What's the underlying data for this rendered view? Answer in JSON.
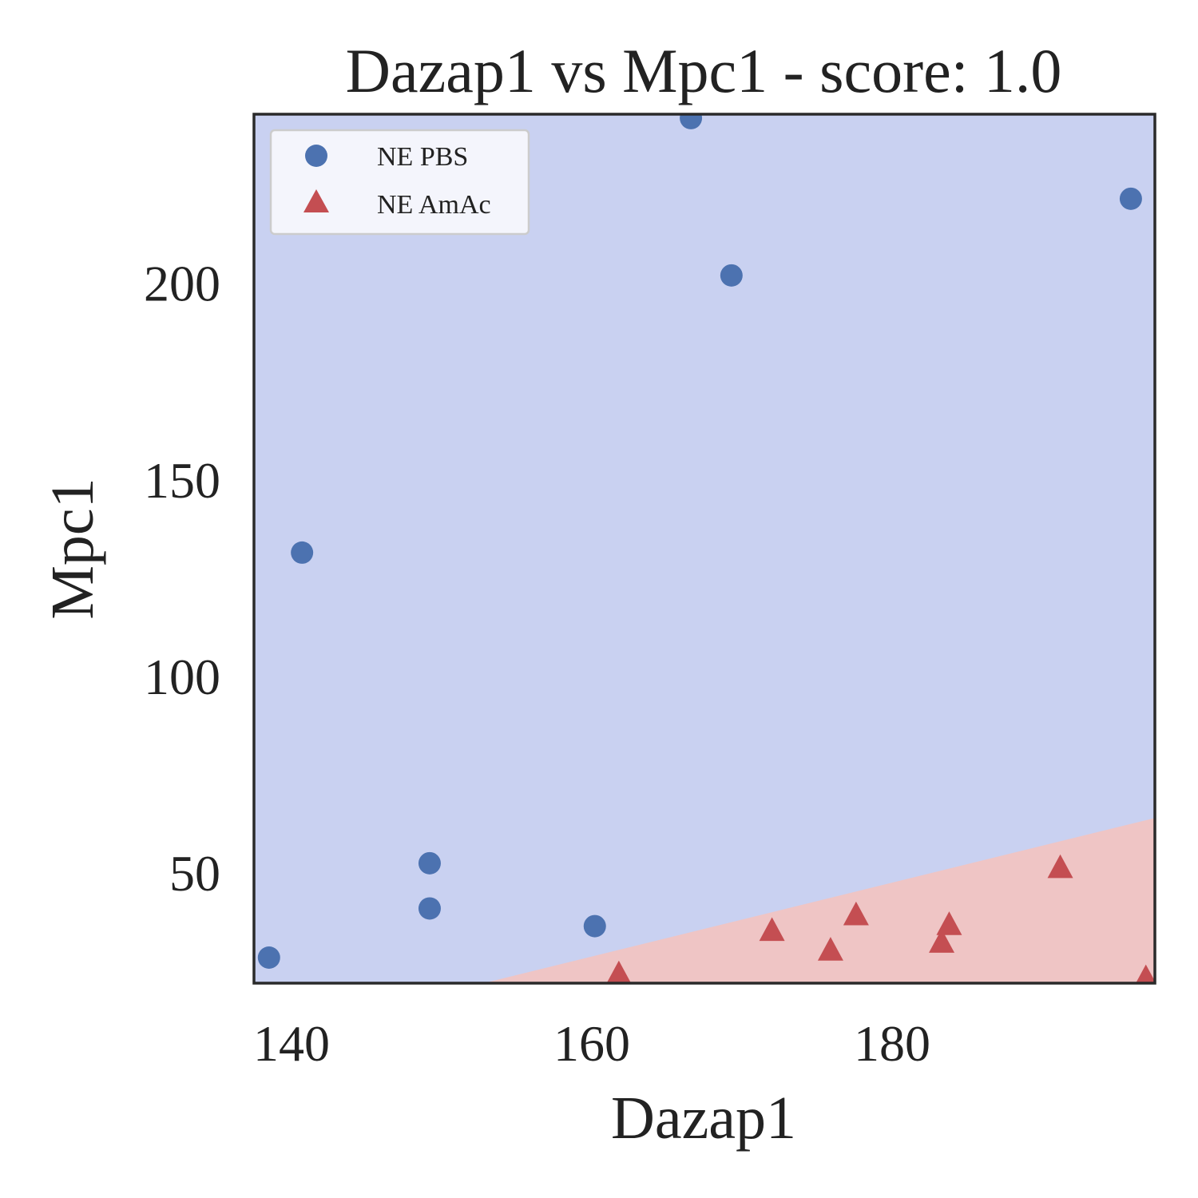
{
  "chart_data": {
    "type": "scatter",
    "title": "Dazap1 vs Mpc1 - score: 1.0",
    "xlabel": "Dazap1",
    "ylabel": "Mpc1",
    "xlim": [
      137.5,
      197.5
    ],
    "ylim": [
      22,
      243
    ],
    "xticks": [
      140,
      160,
      180
    ],
    "yticks": [
      50,
      100,
      150,
      200
    ],
    "grid": false,
    "legend_position": "top-left",
    "background_regions": [
      {
        "class": "NE PBS",
        "color": "#c9d1f1"
      },
      {
        "class": "NE AmAc",
        "color": "#efc5c5"
      }
    ],
    "decision_boundary": {
      "x": [
        152.8,
        197.5
      ],
      "y": [
        22,
        64
      ]
    },
    "series": [
      {
        "name": "NE PBS",
        "marker": "circle",
        "color": "#4c72b0",
        "x": [
          138.5,
          140.7,
          149.2,
          149.2,
          160.2,
          166.6,
          169.3,
          195.9
        ],
        "y": [
          28.5,
          131.5,
          52.5,
          41,
          36.5,
          242,
          202,
          221.5
        ]
      },
      {
        "name": "NE AmAc",
        "marker": "triangle",
        "color": "#c44e52",
        "x": [
          161.8,
          172,
          175.9,
          177.6,
          183.3,
          183.8,
          191.2,
          196.9
        ],
        "y": [
          24.5,
          35.5,
          30.5,
          39.5,
          32.5,
          37,
          51.5,
          23.5
        ]
      }
    ]
  }
}
